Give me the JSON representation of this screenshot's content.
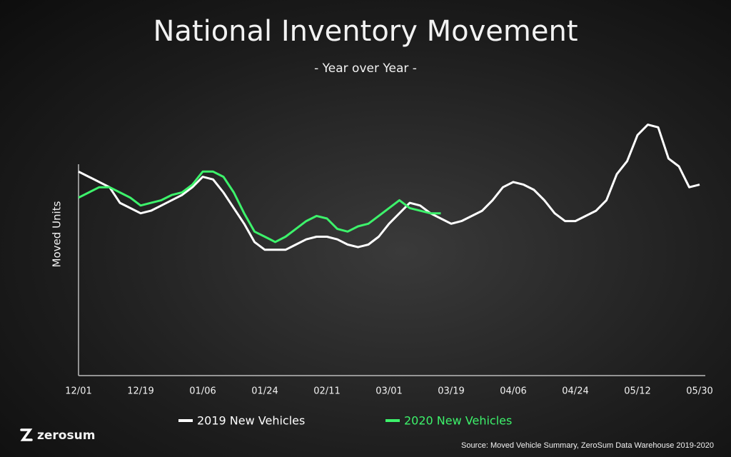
{
  "chart_data": {
    "type": "line",
    "title": "National Inventory Movement",
    "subtitle": "- Year over Year -",
    "y_label": "Moved Units",
    "ylim": [
      0,
      100
    ],
    "categories": [
      "12/01",
      null,
      null,
      null,
      null,
      null,
      "12/19",
      null,
      null,
      null,
      null,
      null,
      "01/06",
      null,
      null,
      null,
      null,
      null,
      "01/24",
      null,
      null,
      null,
      null,
      null,
      "02/11",
      null,
      null,
      null,
      null,
      null,
      "03/01",
      null,
      null,
      null,
      null,
      null,
      "03/19",
      null,
      null,
      null,
      null,
      null,
      "04/06",
      null,
      null,
      null,
      null,
      null,
      "04/24",
      null,
      null,
      null,
      null,
      null,
      "05/12",
      null,
      null,
      null,
      null,
      null,
      "05/30"
    ],
    "series": [
      {
        "name": "2019 New Vehicles",
        "color": "#ffffff",
        "values": [
          78,
          76,
          74,
          72,
          66,
          64,
          62,
          63,
          65,
          67,
          69,
          72,
          76,
          75,
          70,
          64,
          58,
          51,
          48,
          48,
          48,
          50,
          52,
          53,
          53,
          52,
          50,
          49,
          50,
          53,
          58,
          62,
          66,
          65,
          62,
          60,
          58,
          59,
          61,
          63,
          67,
          72,
          74,
          73,
          71,
          67,
          62,
          59,
          59,
          61,
          63,
          67,
          77,
          82,
          92,
          96,
          95,
          83,
          80,
          72,
          73
        ]
      },
      {
        "name": "2020 New Vehicles",
        "color": "#3df26b",
        "values": [
          68,
          70,
          72,
          72,
          70,
          68,
          65,
          66,
          67,
          69,
          70,
          73,
          78,
          78,
          76,
          70,
          62,
          55,
          53,
          51,
          53,
          56,
          59,
          61,
          60,
          56,
          55,
          57,
          58,
          61,
          64,
          67,
          64,
          63,
          62,
          62,
          null,
          null,
          null,
          null,
          null,
          null,
          null,
          null,
          null,
          null,
          null,
          null,
          null,
          null,
          null,
          null,
          null,
          null,
          null,
          null,
          null,
          null,
          null,
          null,
          null
        ]
      }
    ],
    "brand": "zerosum",
    "source": "Source: Moved Vehicle Summary, ZeroSum Data Warehouse 2019-2020"
  }
}
